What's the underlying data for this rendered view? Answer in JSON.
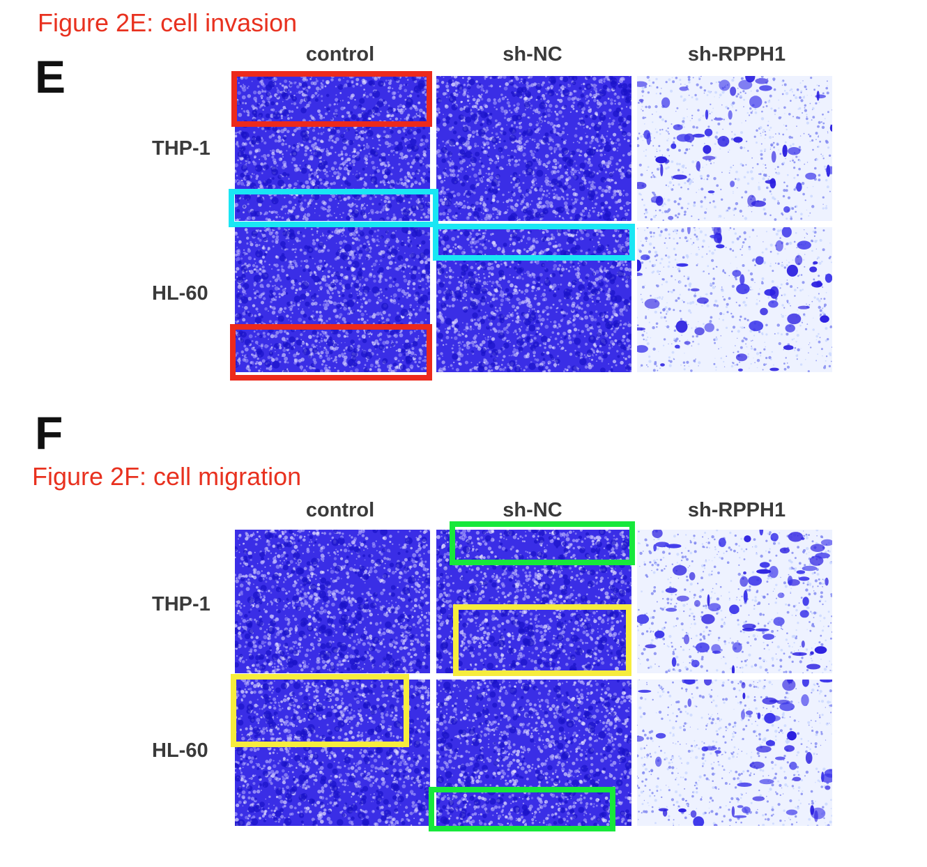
{
  "figure_e": {
    "caption": "Figure 2E: cell invasion",
    "letter": "E",
    "columns": [
      "control",
      "sh-NC",
      "sh-RPPH1"
    ],
    "rows": [
      "THP-1",
      "HL-60"
    ]
  },
  "figure_f": {
    "caption": "Figure 2F: cell migration",
    "letter": "F",
    "columns": [
      "control",
      "sh-NC",
      "sh-RPPH1"
    ],
    "rows": [
      "THP-1",
      "HL-60"
    ]
  },
  "colors": {
    "caption": "#e8311f",
    "stain": "#2a1ee0",
    "highlight_red": "#ec2a1c",
    "highlight_cyan": "#19e6f4",
    "highlight_green": "#17e83b",
    "highlight_yellow": "#f6ec3d"
  }
}
